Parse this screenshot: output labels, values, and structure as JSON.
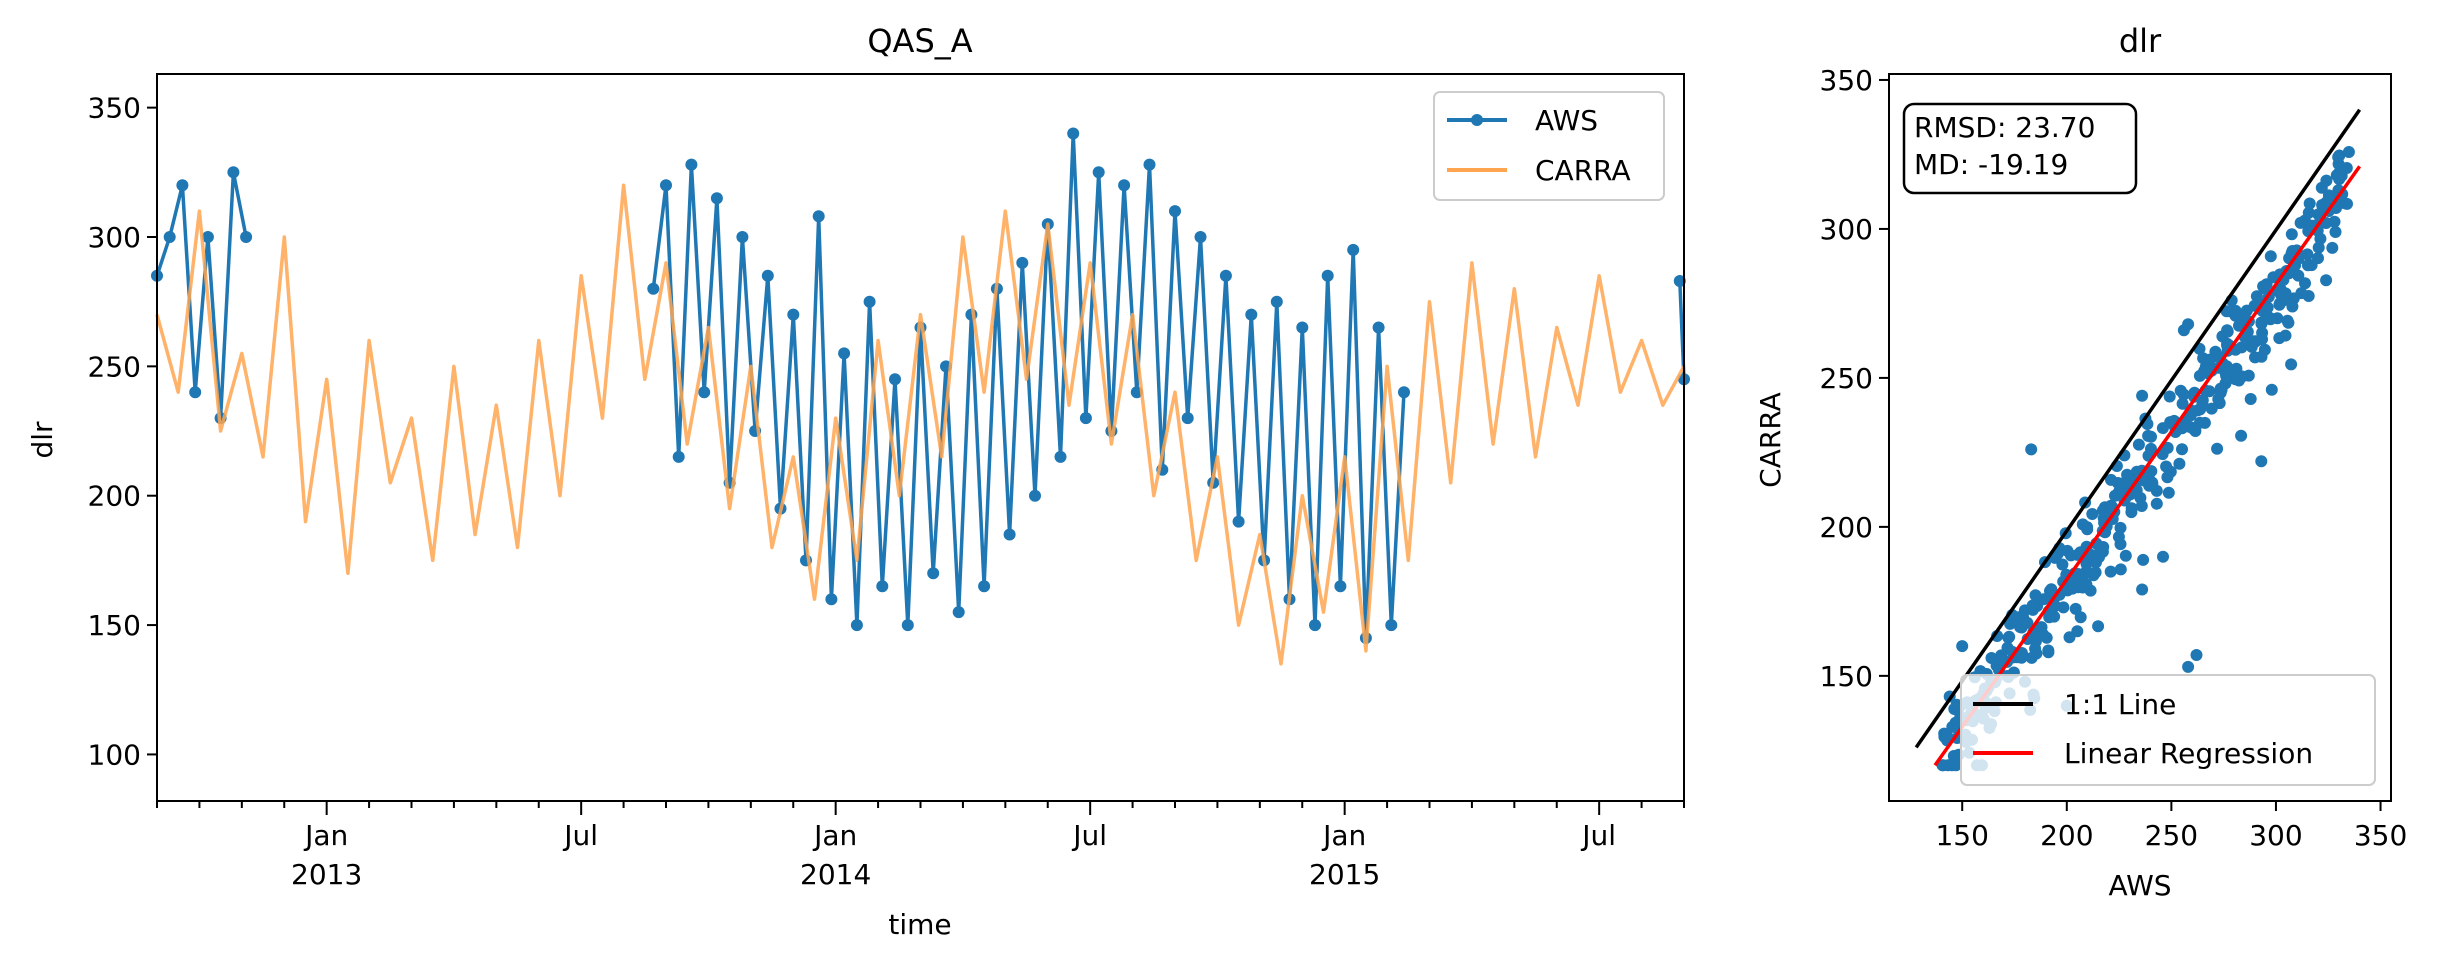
{
  "chart_data": [
    {
      "type": "line",
      "title": "QAS_A",
      "xlabel": "time",
      "ylabel": "dlr",
      "ylim": [
        82,
        363
      ],
      "xlim": [
        "2012-09-01",
        "2015-08-31"
      ],
      "yticks": [
        {
          "value": 100,
          "label": "100"
        },
        {
          "value": 150,
          "label": "150"
        },
        {
          "value": 200,
          "label": "200"
        },
        {
          "value": 250,
          "label": "250"
        },
        {
          "value": 300,
          "label": "300"
        },
        {
          "value": 350,
          "label": "350"
        }
      ],
      "xticks": [
        {
          "month": 4,
          "label": "Jan",
          "year": "2013"
        },
        {
          "month": 10,
          "label": "Jul",
          "year": ""
        },
        {
          "month": 16,
          "label": "Jan",
          "year": "2014"
        },
        {
          "month": 22,
          "label": "Jul",
          "year": ""
        },
        {
          "month": 28,
          "label": "Jan",
          "year": "2015"
        },
        {
          "month": 34,
          "label": "Jul",
          "year": ""
        }
      ],
      "legend": {
        "position": "top-right",
        "entries": [
          "AWS",
          "CARRA"
        ]
      },
      "series": [
        {
          "name": "CARRA",
          "color": "#ffa54f",
          "months": [
            0,
            0.5,
            1,
            1.5,
            2,
            2.5,
            3,
            3.5,
            4,
            4.5,
            5,
            5.5,
            6,
            6.5,
            7,
            7.5,
            8,
            8.5,
            9,
            9.5,
            10,
            10.5,
            11,
            11.5,
            12,
            12.5,
            13,
            13.5,
            14,
            14.5,
            15,
            15.5,
            16,
            16.5,
            17,
            17.5,
            18,
            18.5,
            19,
            19.5,
            20,
            20.5,
            21,
            21.5,
            22,
            22.5,
            23,
            23.5,
            24,
            24.5,
            25,
            25.5,
            26,
            26.5,
            27,
            27.5,
            28,
            28.5,
            29,
            29.5,
            30,
            30.5,
            31,
            31.5,
            32,
            32.5,
            33,
            33.5,
            34,
            34.5,
            35,
            35.5,
            36
          ],
          "values": [
            270,
            240,
            310,
            225,
            255,
            215,
            300,
            190,
            245,
            170,
            260,
            205,
            230,
            175,
            250,
            185,
            235,
            180,
            260,
            200,
            285,
            230,
            320,
            245,
            290,
            220,
            265,
            195,
            250,
            180,
            215,
            160,
            230,
            175,
            260,
            200,
            270,
            215,
            300,
            240,
            310,
            245,
            305,
            235,
            290,
            220,
            270,
            200,
            240,
            175,
            215,
            150,
            185,
            135,
            200,
            155,
            215,
            140,
            250,
            175,
            275,
            205,
            290,
            220,
            280,
            215,
            265,
            235,
            285,
            240,
            260,
            235,
            250
          ]
        },
        {
          "name": "AWS",
          "color": "#1f77b4",
          "segments": [
            {
              "months": [
                0,
                0.3,
                0.6,
                0.9,
                1.2,
                1.5,
                1.8,
                2.1
              ],
              "values": [
                285,
                300,
                320,
                240,
                300,
                230,
                325,
                300
              ]
            },
            {
              "months": [
                11.7,
                12,
                12.3,
                12.6,
                12.9,
                13.2,
                13.5,
                13.8,
                14.1,
                14.4,
                14.7,
                15,
                15.3,
                15.6,
                15.9,
                16.2,
                16.5,
                16.8,
                17.1,
                17.4,
                17.7,
                18,
                18.3,
                18.6,
                18.9,
                19.2,
                19.5,
                19.8,
                20.1,
                20.4,
                20.7,
                21,
                21.3,
                21.6,
                21.9,
                22.2,
                22.5,
                22.8,
                23.1,
                23.4,
                23.7,
                24,
                24.3,
                24.6,
                24.9,
                25.2,
                25.5,
                25.8,
                26.1,
                26.4,
                26.7,
                27,
                27.3,
                27.6,
                27.9,
                28.2,
                28.5,
                28.8,
                29.1,
                29.4
              ],
              "values": [
                280,
                320,
                215,
                328,
                240,
                315,
                205,
                300,
                225,
                285,
                195,
                270,
                175,
                308,
                160,
                255,
                150,
                275,
                165,
                245,
                150,
                265,
                170,
                250,
                155,
                270,
                165,
                280,
                185,
                290,
                200,
                305,
                215,
                340,
                230,
                325,
                225,
                320,
                240,
                328,
                210,
                310,
                230,
                300,
                205,
                285,
                190,
                270,
                175,
                275,
                160,
                265,
                150,
                285,
                165,
                295,
                145,
                265,
                150,
                240
              ]
            },
            {
              "months": [
                35.9,
                36
              ],
              "values": [
                283,
                245
              ]
            }
          ]
        }
      ]
    },
    {
      "type": "scatter",
      "title": "dlr",
      "xlabel": "AWS",
      "ylabel": "CARRA",
      "xlim": [
        115,
        355
      ],
      "ylim": [
        108,
        352
      ],
      "xticks": [
        150,
        200,
        250,
        300,
        350
      ],
      "yticks": [
        150,
        200,
        250,
        300,
        350
      ],
      "annotation": [
        "RMSD: 23.70",
        "MD: -19.19"
      ],
      "legend": {
        "position": "bottom-right",
        "entries": [
          "1:1 Line",
          "Linear Regression"
        ]
      },
      "identity_line": {
        "name": "1:1 Line",
        "color": "#000000",
        "x": [
          128,
          340
        ],
        "y": [
          126,
          340
        ]
      },
      "regression_line": {
        "name": "Linear Regression",
        "color": "#ff0000",
        "x": [
          137,
          340
        ],
        "y": [
          120,
          321
        ]
      },
      "points": {
        "color": "#1f77b4",
        "slope": 0.9897,
        "intercept": -15.6,
        "x_range": [
          140,
          336
        ],
        "count": 420,
        "outliers": [
          [
            183,
            226
          ],
          [
            236,
            244
          ],
          [
            256,
            266
          ],
          [
            258,
            268
          ],
          [
            246,
            190
          ],
          [
            221,
            185
          ],
          [
            293,
            222
          ],
          [
            298,
            246
          ],
          [
            180,
            148
          ],
          [
            200,
            140
          ],
          [
            150,
            160
          ],
          [
            164,
            156
          ],
          [
            262,
            157
          ],
          [
            258,
            153
          ],
          [
            236,
            179
          ],
          [
            205,
            165
          ]
        ]
      }
    }
  ]
}
